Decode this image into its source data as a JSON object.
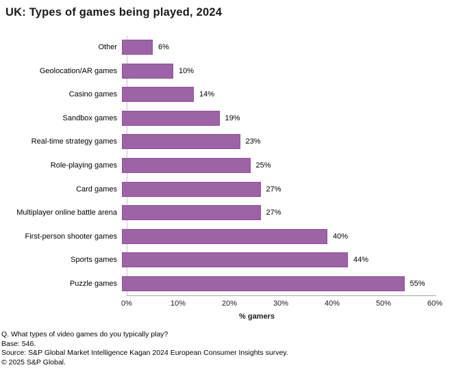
{
  "title": "UK: Types of games being played, 2024",
  "chart_data": {
    "type": "bar",
    "orientation": "horizontal",
    "title": "UK: Types of games being played, 2024",
    "categories": [
      "Other",
      "Geolocation/AR games",
      "Casino games",
      "Sandbox games",
      "Real-time strategy games",
      "Role-playing games",
      "Card games",
      "Multiplayer online battle arena",
      "First-person shooter games",
      "Sports games",
      "Puzzle games"
    ],
    "values": [
      6,
      10,
      14,
      19,
      23,
      25,
      27,
      27,
      40,
      44,
      55
    ],
    "value_labels": [
      "6%",
      "10%",
      "14%",
      "19%",
      "23%",
      "25%",
      "27%",
      "27%",
      "40%",
      "44%",
      "55%"
    ],
    "xlabel": "% gamers",
    "ylabel": "",
    "xlim": [
      0,
      60
    ],
    "x_ticks": [
      "0%",
      "10%",
      "20%",
      "30%",
      "40%",
      "50%",
      "60%"
    ],
    "grid": false,
    "legend": "none",
    "bar_color": "#9D63A6"
  },
  "footnotes": [
    "Q. What types of video games do you typically play?",
    "Base: 546.",
    "Source: S&P Global Market Intelligence Kagan 2024 European Consumer Insights survey.",
    "© 2025 S&P Global."
  ]
}
